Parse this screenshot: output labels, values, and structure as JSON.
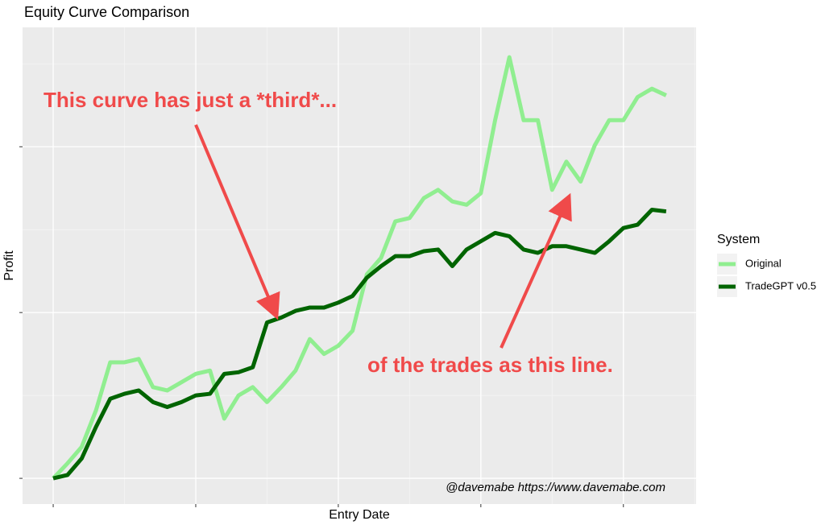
{
  "chart_data": {
    "type": "line",
    "title": "Equity Curve Comparison",
    "x_label": "Entry Date",
    "y_label": "Profit",
    "x": [
      0,
      0.1,
      0.2,
      0.3,
      0.4,
      0.5,
      0.6,
      0.7,
      0.8,
      0.9,
      1.0,
      1.1,
      1.2,
      1.3,
      1.4,
      1.5,
      1.6,
      1.7,
      1.8,
      1.9,
      2.0,
      2.1,
      2.2,
      2.3,
      2.4,
      2.5,
      2.6,
      2.7,
      2.8,
      2.9,
      3.0,
      3.1,
      3.2,
      3.3,
      3.4,
      3.5,
      3.6,
      3.7,
      3.8,
      3.9,
      4.0,
      4.1,
      4.2,
      4.3
    ],
    "series": [
      {
        "name": "Original",
        "color": "#90ee90",
        "values": [
          0,
          0.09,
          0.19,
          0.41,
          0.7,
          0.7,
          0.72,
          0.55,
          0.53,
          0.58,
          0.63,
          0.65,
          0.36,
          0.5,
          0.55,
          0.46,
          0.55,
          0.65,
          0.84,
          0.75,
          0.8,
          0.89,
          1.23,
          1.33,
          1.55,
          1.57,
          1.69,
          1.74,
          1.67,
          1.65,
          1.72,
          2.16,
          2.54,
          2.16,
          2.16,
          1.74,
          1.91,
          1.79,
          2.01,
          2.16,
          2.16,
          2.3,
          2.35,
          2.31
        ]
      },
      {
        "name": "TradeGPT v0.5",
        "color": "#006400",
        "values": [
          0,
          0.02,
          0.12,
          0.31,
          0.48,
          0.51,
          0.53,
          0.46,
          0.43,
          0.46,
          0.5,
          0.51,
          0.63,
          0.64,
          0.67,
          0.94,
          0.97,
          1.01,
          1.03,
          1.03,
          1.06,
          1.1,
          1.21,
          1.28,
          1.34,
          1.34,
          1.37,
          1.38,
          1.28,
          1.38,
          1.43,
          1.48,
          1.46,
          1.38,
          1.36,
          1.4,
          1.4,
          1.38,
          1.36,
          1.43,
          1.51,
          1.53,
          1.62,
          1.61
        ]
      }
    ],
    "xlim": [
      -0.215,
      4.51
    ],
    "ylim": [
      -0.155,
      2.72
    ],
    "xticks": [
      0,
      1,
      2,
      3,
      4
    ],
    "yticks": [
      0,
      1,
      2
    ],
    "grid": true,
    "legend_title": "System",
    "legend": "right",
    "annotations": [
      "This curve has just a *third*...",
      "of the trades as this line.",
      "@davemabe https://www.davemabe.com"
    ]
  }
}
